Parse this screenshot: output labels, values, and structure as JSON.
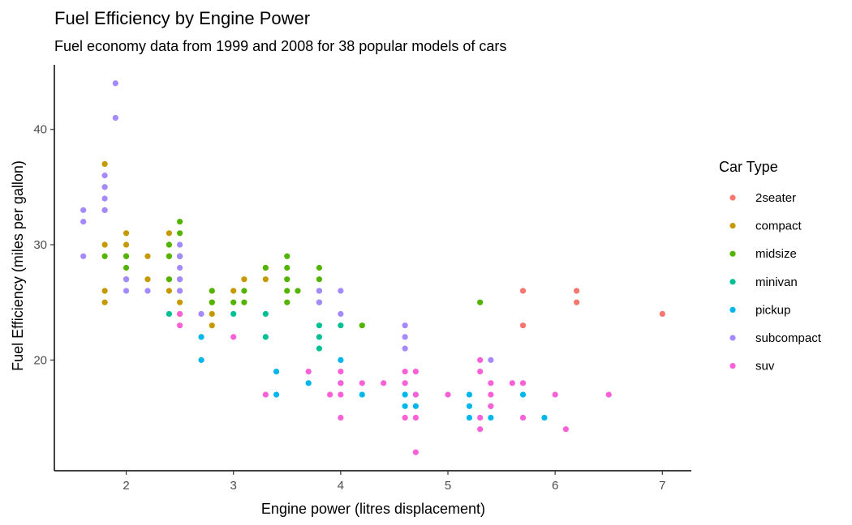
{
  "chart_data": {
    "type": "scatter",
    "title": "Fuel Efficiency by Engine Power",
    "subtitle": "Fuel economy data from 1999 and 2008 for 38 popular models of cars",
    "xlabel": "Engine power (litres displacement)",
    "ylabel": "Fuel Efficiency (miles per gallon)",
    "xlim": [
      1.33,
      7.27
    ],
    "ylim": [
      10.4,
      45.6
    ],
    "x_ticks": [
      2,
      3,
      4,
      5,
      6,
      7
    ],
    "y_ticks": [
      20,
      30,
      40
    ],
    "grid": false,
    "legend": {
      "title": "Car Type",
      "position": "right"
    },
    "series": [
      {
        "name": "2seater",
        "color": "#F8766D",
        "points": [
          [
            5.7,
            26
          ],
          [
            5.7,
            23
          ],
          [
            6.2,
            26
          ],
          [
            6.2,
            25
          ],
          [
            7.0,
            24
          ]
        ]
      },
      {
        "name": "compact",
        "color": "#C49A00",
        "points": [
          [
            1.8,
            37
          ],
          [
            1.8,
            35
          ],
          [
            1.8,
            33
          ],
          [
            1.8,
            30
          ],
          [
            1.8,
            26
          ],
          [
            1.8,
            25
          ],
          [
            2.0,
            31
          ],
          [
            2.0,
            30
          ],
          [
            2.0,
            29
          ],
          [
            2.2,
            29
          ],
          [
            2.2,
            27
          ],
          [
            2.4,
            31
          ],
          [
            2.4,
            30
          ],
          [
            2.4,
            29
          ],
          [
            2.4,
            27
          ],
          [
            2.4,
            26
          ],
          [
            2.5,
            29
          ],
          [
            2.5,
            27
          ],
          [
            2.5,
            26
          ],
          [
            2.5,
            25
          ],
          [
            2.5,
            24
          ],
          [
            2.8,
            26
          ],
          [
            2.8,
            25
          ],
          [
            2.8,
            24
          ],
          [
            2.8,
            23
          ],
          [
            3.0,
            26
          ],
          [
            3.1,
            27
          ],
          [
            3.3,
            28
          ],
          [
            3.3,
            27
          ]
        ]
      },
      {
        "name": "midsize",
        "color": "#53B400",
        "points": [
          [
            1.8,
            29
          ],
          [
            2.0,
            29
          ],
          [
            2.0,
            28
          ],
          [
            2.0,
            27
          ],
          [
            2.4,
            30
          ],
          [
            2.4,
            29
          ],
          [
            2.4,
            27
          ],
          [
            2.5,
            32
          ],
          [
            2.5,
            31
          ],
          [
            2.5,
            29
          ],
          [
            2.8,
            26
          ],
          [
            2.8,
            25
          ],
          [
            3.0,
            25
          ],
          [
            3.1,
            26
          ],
          [
            3.1,
            25
          ],
          [
            3.3,
            28
          ],
          [
            3.5,
            29
          ],
          [
            3.5,
            28
          ],
          [
            3.5,
            27
          ],
          [
            3.5,
            26
          ],
          [
            3.5,
            25
          ],
          [
            3.6,
            26
          ],
          [
            3.8,
            28
          ],
          [
            3.8,
            27
          ],
          [
            3.8,
            26
          ],
          [
            3.8,
            25
          ],
          [
            4.2,
            23
          ],
          [
            5.3,
            25
          ]
        ]
      },
      {
        "name": "minivan",
        "color": "#00C094",
        "points": [
          [
            2.4,
            24
          ],
          [
            3.0,
            24
          ],
          [
            3.3,
            24
          ],
          [
            3.3,
            22
          ],
          [
            3.8,
            23
          ],
          [
            3.8,
            22
          ],
          [
            3.8,
            21
          ],
          [
            4.0,
            23
          ]
        ]
      },
      {
        "name": "pickup",
        "color": "#00B6EB",
        "points": [
          [
            2.7,
            22
          ],
          [
            2.7,
            20
          ],
          [
            3.4,
            19
          ],
          [
            3.4,
            17
          ],
          [
            3.7,
            18
          ],
          [
            4.0,
            20
          ],
          [
            4.0,
            18
          ],
          [
            4.2,
            17
          ],
          [
            4.6,
            17
          ],
          [
            4.6,
            16
          ],
          [
            4.7,
            17
          ],
          [
            4.7,
            16
          ],
          [
            5.2,
            17
          ],
          [
            5.2,
            16
          ],
          [
            5.2,
            15
          ],
          [
            5.4,
            16
          ],
          [
            5.4,
            15
          ],
          [
            5.7,
            17
          ],
          [
            5.9,
            15
          ]
        ]
      },
      {
        "name": "subcompact",
        "color": "#A58AFF",
        "points": [
          [
            1.6,
            33
          ],
          [
            1.6,
            32
          ],
          [
            1.6,
            29
          ],
          [
            1.8,
            36
          ],
          [
            1.8,
            35
          ],
          [
            1.8,
            34
          ],
          [
            1.8,
            33
          ],
          [
            1.9,
            44
          ],
          [
            1.9,
            41
          ],
          [
            2.0,
            27
          ],
          [
            2.0,
            26
          ],
          [
            2.2,
            26
          ],
          [
            2.5,
            30
          ],
          [
            2.5,
            29
          ],
          [
            2.5,
            28
          ],
          [
            2.5,
            27
          ],
          [
            2.5,
            26
          ],
          [
            2.7,
            24
          ],
          [
            3.8,
            26
          ],
          [
            3.8,
            25
          ],
          [
            4.0,
            26
          ],
          [
            4.0,
            24
          ],
          [
            4.6,
            23
          ],
          [
            4.6,
            22
          ],
          [
            4.6,
            21
          ],
          [
            5.4,
            20
          ]
        ]
      },
      {
        "name": "suv",
        "color": "#FB61D7",
        "points": [
          [
            2.5,
            24
          ],
          [
            2.5,
            23
          ],
          [
            3.0,
            22
          ],
          [
            3.3,
            17
          ],
          [
            3.7,
            19
          ],
          [
            3.9,
            17
          ],
          [
            4.0,
            19
          ],
          [
            4.0,
            18
          ],
          [
            4.0,
            17
          ],
          [
            4.0,
            15
          ],
          [
            4.2,
            18
          ],
          [
            4.4,
            18
          ],
          [
            4.6,
            19
          ],
          [
            4.6,
            18
          ],
          [
            4.6,
            15
          ],
          [
            4.7,
            19
          ],
          [
            4.7,
            17
          ],
          [
            4.7,
            15
          ],
          [
            4.7,
            12
          ],
          [
            5.0,
            17
          ],
          [
            5.3,
            20
          ],
          [
            5.3,
            19
          ],
          [
            5.3,
            15
          ],
          [
            5.3,
            14
          ],
          [
            5.4,
            18
          ],
          [
            5.4,
            17
          ],
          [
            5.4,
            16
          ],
          [
            5.6,
            18
          ],
          [
            5.7,
            18
          ],
          [
            5.7,
            15
          ],
          [
            6.0,
            17
          ],
          [
            6.1,
            14
          ],
          [
            6.5,
            17
          ]
        ]
      }
    ]
  }
}
